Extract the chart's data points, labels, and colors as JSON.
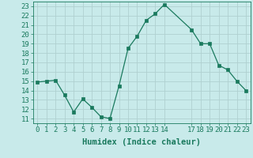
{
  "x": [
    0,
    1,
    2,
    3,
    4,
    5,
    6,
    7,
    8,
    9,
    10,
    11,
    12,
    13,
    14,
    17,
    18,
    19,
    20,
    21,
    22,
    23
  ],
  "y": [
    14.9,
    15.0,
    15.1,
    13.5,
    11.7,
    13.1,
    12.2,
    11.2,
    11.0,
    14.5,
    18.5,
    19.8,
    21.5,
    22.2,
    23.2,
    20.5,
    19.0,
    19.0,
    16.7,
    16.2,
    15.0,
    14.0
  ],
  "line_color": "#1a7a5e",
  "marker_color": "#1a7a5e",
  "bg_color": "#c8eaea",
  "grid_color": "#b0d0d0",
  "xlabel": "Humidex (Indice chaleur)",
  "ylabel_ticks": [
    11,
    12,
    13,
    14,
    15,
    16,
    17,
    18,
    19,
    20,
    21,
    22,
    23
  ],
  "xlabel_ticks": [
    0,
    1,
    2,
    3,
    4,
    5,
    6,
    7,
    8,
    9,
    10,
    11,
    12,
    13,
    14,
    17,
    18,
    19,
    20,
    21,
    22,
    23
  ],
  "xlim": [
    -0.5,
    23.5
  ],
  "ylim": [
    10.5,
    23.5
  ],
  "tick_label_color": "#1a7a5e",
  "font_size": 6.5,
  "xlabel_fontsize": 7.5
}
